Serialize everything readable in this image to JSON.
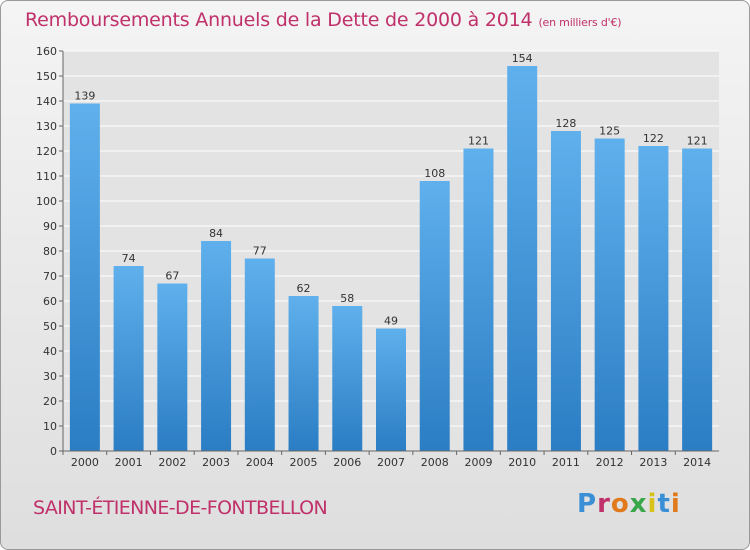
{
  "header": {
    "title": "Remboursements Annuels de la Dette de 2000 à 2014",
    "unit": "(en milliers d'€)"
  },
  "footer": {
    "commune": "SAINT-ÉTIENNE-DE-FONTBELLON",
    "logo_letters": [
      "P",
      "r",
      "o",
      "x",
      "i",
      "t",
      "i"
    ]
  },
  "colors": {
    "bar": "#4a9ede",
    "bar_dark": "#2b7dc4",
    "title": "#c0306a",
    "grid": "#ffffff"
  },
  "chart_data": {
    "type": "bar",
    "title": "Remboursements Annuels de la Dette de 2000 à 2014",
    "xlabel": "",
    "ylabel": "",
    "categories": [
      "2000",
      "2001",
      "2002",
      "2003",
      "2004",
      "2005",
      "2006",
      "2007",
      "2008",
      "2009",
      "2010",
      "2011",
      "2012",
      "2013",
      "2014"
    ],
    "values": [
      139,
      74,
      67,
      84,
      77,
      62,
      58,
      49,
      108,
      121,
      154,
      128,
      125,
      122,
      121
    ],
    "ylim": [
      0,
      160
    ],
    "yticks": [
      0,
      10,
      20,
      30,
      40,
      50,
      60,
      70,
      80,
      90,
      100,
      110,
      120,
      130,
      140,
      150,
      160
    ],
    "grid": true,
    "legend": "none"
  }
}
